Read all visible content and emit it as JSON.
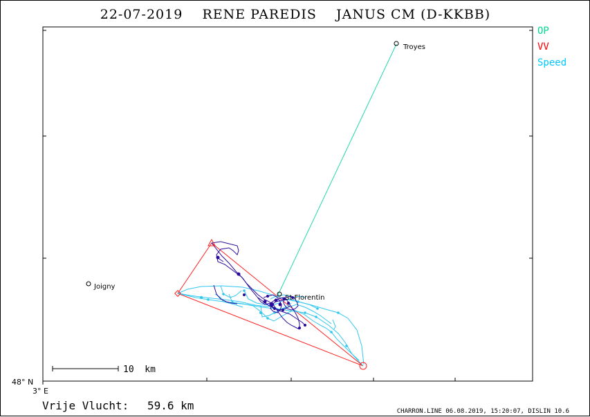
{
  "title": "22-07-2019    RENE PAREDIS    JANUS CM (D-KKBB)",
  "legend": {
    "items": [
      {
        "label": "OP",
        "color": "#00d890"
      },
      {
        "label": "VV",
        "color": "#ff0000"
      },
      {
        "label": "Speed",
        "color": "#00c8ff"
      }
    ]
  },
  "places": [
    {
      "name": "Troyes"
    },
    {
      "name": "Joigny"
    },
    {
      "name": "St.Florentin"
    }
  ],
  "scale_bar": {
    "label": "10  km"
  },
  "axis": {
    "lat_label": "48° N",
    "lon_label": "3° E"
  },
  "footer": {
    "distance_label": "Vrije Vlucht:",
    "distance_value": "59.6 km",
    "credits": "CHARRON.LINE 06.08.2019, 15:20:07, DISLIN 10.6"
  },
  "colors": {
    "op_line": "#20d8a8",
    "vv_line": "#ff2020",
    "speed_track": "#30c8f0",
    "flight_track": "#2a0a9a",
    "frame": "#000000"
  }
}
